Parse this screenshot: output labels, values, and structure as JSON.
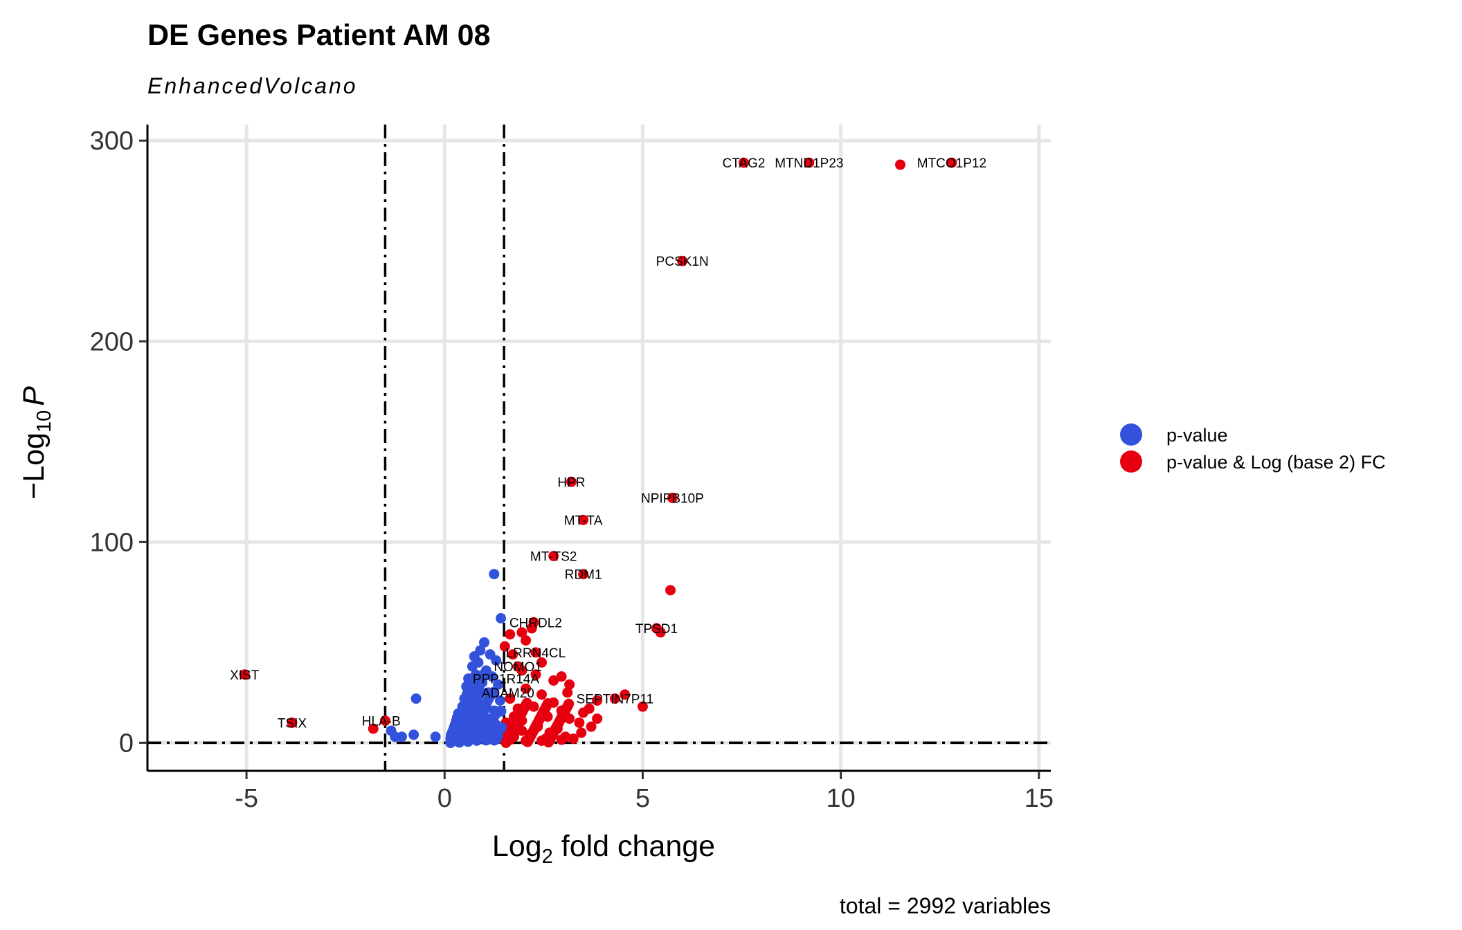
{
  "chart_data": {
    "type": "scatter",
    "title": "DE Genes Patient AM 08",
    "subtitle": "EnhancedVolcano",
    "xlabel": {
      "main": "Log",
      "sub": "2",
      "rest": " fold change"
    },
    "ylabel": {
      "prefix": "−Log",
      "sub": "10",
      "var": "P"
    },
    "xlim": [
      -7.5,
      15.3
    ],
    "ylim": [
      -14,
      308
    ],
    "x_ticks": [
      -5,
      0,
      5,
      10,
      15
    ],
    "x_tick_labels": [
      "-5",
      "0",
      "5",
      "10",
      "15"
    ],
    "y_ticks": [
      0,
      100,
      200,
      300
    ],
    "y_tick_labels": [
      "0",
      "100",
      "200",
      "300"
    ],
    "fc_cutoff": 1.5,
    "p_cutoff_log": 0,
    "grid": true,
    "legend_position": "right",
    "caption": "total = 2992 variables",
    "colors": {
      "blue": "#3352dc",
      "red": "#e6000f"
    },
    "series": [
      {
        "name": "p-value",
        "color": "#3352dc",
        "points": [
          [
            1.25,
            84
          ],
          [
            1.42,
            62
          ],
          [
            1.0,
            50
          ],
          [
            0.75,
            43
          ],
          [
            0.9,
            46
          ],
          [
            1.15,
            44
          ],
          [
            0.7,
            38
          ],
          [
            0.85,
            40
          ],
          [
            1.3,
            41
          ],
          [
            1.05,
            36
          ],
          [
            0.6,
            32
          ],
          [
            1.2,
            33
          ],
          [
            0.95,
            30
          ],
          [
            0.55,
            28
          ],
          [
            1.35,
            29
          ],
          [
            0.8,
            26
          ],
          [
            1.1,
            25
          ],
          [
            0.5,
            22
          ],
          [
            0.65,
            20
          ],
          [
            1.4,
            21
          ],
          [
            0.45,
            18
          ],
          [
            0.9,
            17
          ],
          [
            1.25,
            16
          ],
          [
            0.35,
            14
          ],
          [
            0.7,
            12
          ],
          [
            1.0,
            13
          ],
          [
            0.3,
            10
          ],
          [
            0.6,
            8
          ],
          [
            1.3,
            9
          ],
          [
            0.25,
            6
          ],
          [
            0.85,
            5
          ],
          [
            1.15,
            4
          ],
          [
            0.4,
            3
          ],
          [
            0.75,
            2
          ],
          [
            1.45,
            3
          ],
          [
            0.2,
            1.5
          ],
          [
            0.55,
            1
          ],
          [
            1.05,
            1.2
          ],
          [
            1.35,
            2
          ],
          [
            0.95,
            7
          ],
          [
            1.2,
            11
          ],
          [
            0.5,
            15
          ],
          [
            -0.72,
            22
          ],
          [
            -0.23,
            3
          ],
          [
            -0.78,
            4
          ],
          [
            -1.08,
            3
          ],
          [
            -1.35,
            6
          ],
          [
            -1.25,
            3
          ],
          [
            0.15,
            2
          ],
          [
            0.3,
            4
          ]
        ]
      },
      {
        "name": "p-value & Log (base 2) FC",
        "color": "#e6000f",
        "points": [
          [
            7.55,
            289
          ],
          [
            9.2,
            289
          ],
          [
            11.5,
            288
          ],
          [
            12.8,
            289
          ],
          [
            6.0,
            240
          ],
          [
            3.2,
            130
          ],
          [
            5.75,
            122
          ],
          [
            3.5,
            111
          ],
          [
            2.75,
            93
          ],
          [
            3.5,
            84
          ],
          [
            5.7,
            76
          ],
          [
            2.25,
            60
          ],
          [
            1.95,
            55
          ],
          [
            2.2,
            57
          ],
          [
            1.65,
            54
          ],
          [
            1.52,
            48
          ],
          [
            2.05,
            51
          ],
          [
            5.45,
            55
          ],
          [
            5.35,
            57
          ],
          [
            2.3,
            45
          ],
          [
            1.72,
            44
          ],
          [
            1.85,
            38
          ],
          [
            2.45,
            40
          ],
          [
            1.95,
            36
          ],
          [
            2.3,
            34
          ],
          [
            2.95,
            33
          ],
          [
            2.75,
            31
          ],
          [
            3.1,
            25
          ],
          [
            3.15,
            29
          ],
          [
            5.0,
            18
          ],
          [
            4.55,
            24
          ],
          [
            4.3,
            22
          ],
          [
            3.85,
            21
          ],
          [
            3.65,
            17
          ],
          [
            3.85,
            12
          ],
          [
            3.5,
            15
          ],
          [
            3.7,
            8
          ],
          [
            3.4,
            10
          ],
          [
            2.95,
            16
          ],
          [
            3.15,
            12
          ],
          [
            2.75,
            20
          ],
          [
            2.45,
            24
          ],
          [
            2.05,
            27
          ],
          [
            1.65,
            22
          ],
          [
            1.85,
            17
          ],
          [
            2.25,
            18
          ],
          [
            2.6,
            13
          ],
          [
            1.55,
            10
          ],
          [
            1.95,
            11
          ],
          [
            2.35,
            8
          ],
          [
            2.85,
            7
          ],
          [
            3.45,
            5
          ],
          [
            1.75,
            3
          ],
          [
            2.15,
            4
          ],
          [
            2.55,
            2
          ],
          [
            3.05,
            3
          ],
          [
            1.65,
            1.5
          ],
          [
            2.05,
            1
          ],
          [
            2.45,
            1
          ],
          [
            2.95,
            1.5
          ],
          [
            3.25,
            2
          ],
          [
            1.58,
            5
          ],
          [
            1.95,
            6
          ],
          [
            2.65,
            5
          ],
          [
            1.75,
            13
          ],
          [
            -5.05,
            34
          ],
          [
            -3.85,
            10
          ],
          [
            -1.8,
            7
          ],
          [
            -1.5,
            11
          ]
        ]
      }
    ],
    "labels": [
      {
        "text": "CTAG2",
        "x": 7.55,
        "y": 289
      },
      {
        "text": "MTND1P23",
        "x": 9.2,
        "y": 289
      },
      {
        "text": "MTCO1P12",
        "x": 12.8,
        "y": 289
      },
      {
        "text": "PCSK1N",
        "x": 6.0,
        "y": 240
      },
      {
        "text": "HPR",
        "x": 3.2,
        "y": 130
      },
      {
        "text": "NPIPB10P",
        "x": 5.75,
        "y": 122
      },
      {
        "text": "MT-TA",
        "x": 3.5,
        "y": 111
      },
      {
        "text": "MT-TS2",
        "x": 2.75,
        "y": 93
      },
      {
        "text": "RDM1",
        "x": 3.5,
        "y": 84
      },
      {
        "text": "CHRDL2",
        "x": 2.3,
        "y": 60
      },
      {
        "text": "TPSD1",
        "x": 5.35,
        "y": 57
      },
      {
        "text": "LRRN4CL",
        "x": 2.3,
        "y": 45
      },
      {
        "text": "NOMO1",
        "x": 1.85,
        "y": 38
      },
      {
        "text": "PPP1R14A",
        "x": 1.55,
        "y": 32
      },
      {
        "text": "ADAM20",
        "x": 1.6,
        "y": 25
      },
      {
        "text": "SEPTIN7P11",
        "x": 4.3,
        "y": 22
      },
      {
        "text": "XIST",
        "x": -5.05,
        "y": 34
      },
      {
        "text": "TSIX",
        "x": -3.85,
        "y": 10
      },
      {
        "text": "HLA-B",
        "x": -1.6,
        "y": 11
      }
    ]
  }
}
